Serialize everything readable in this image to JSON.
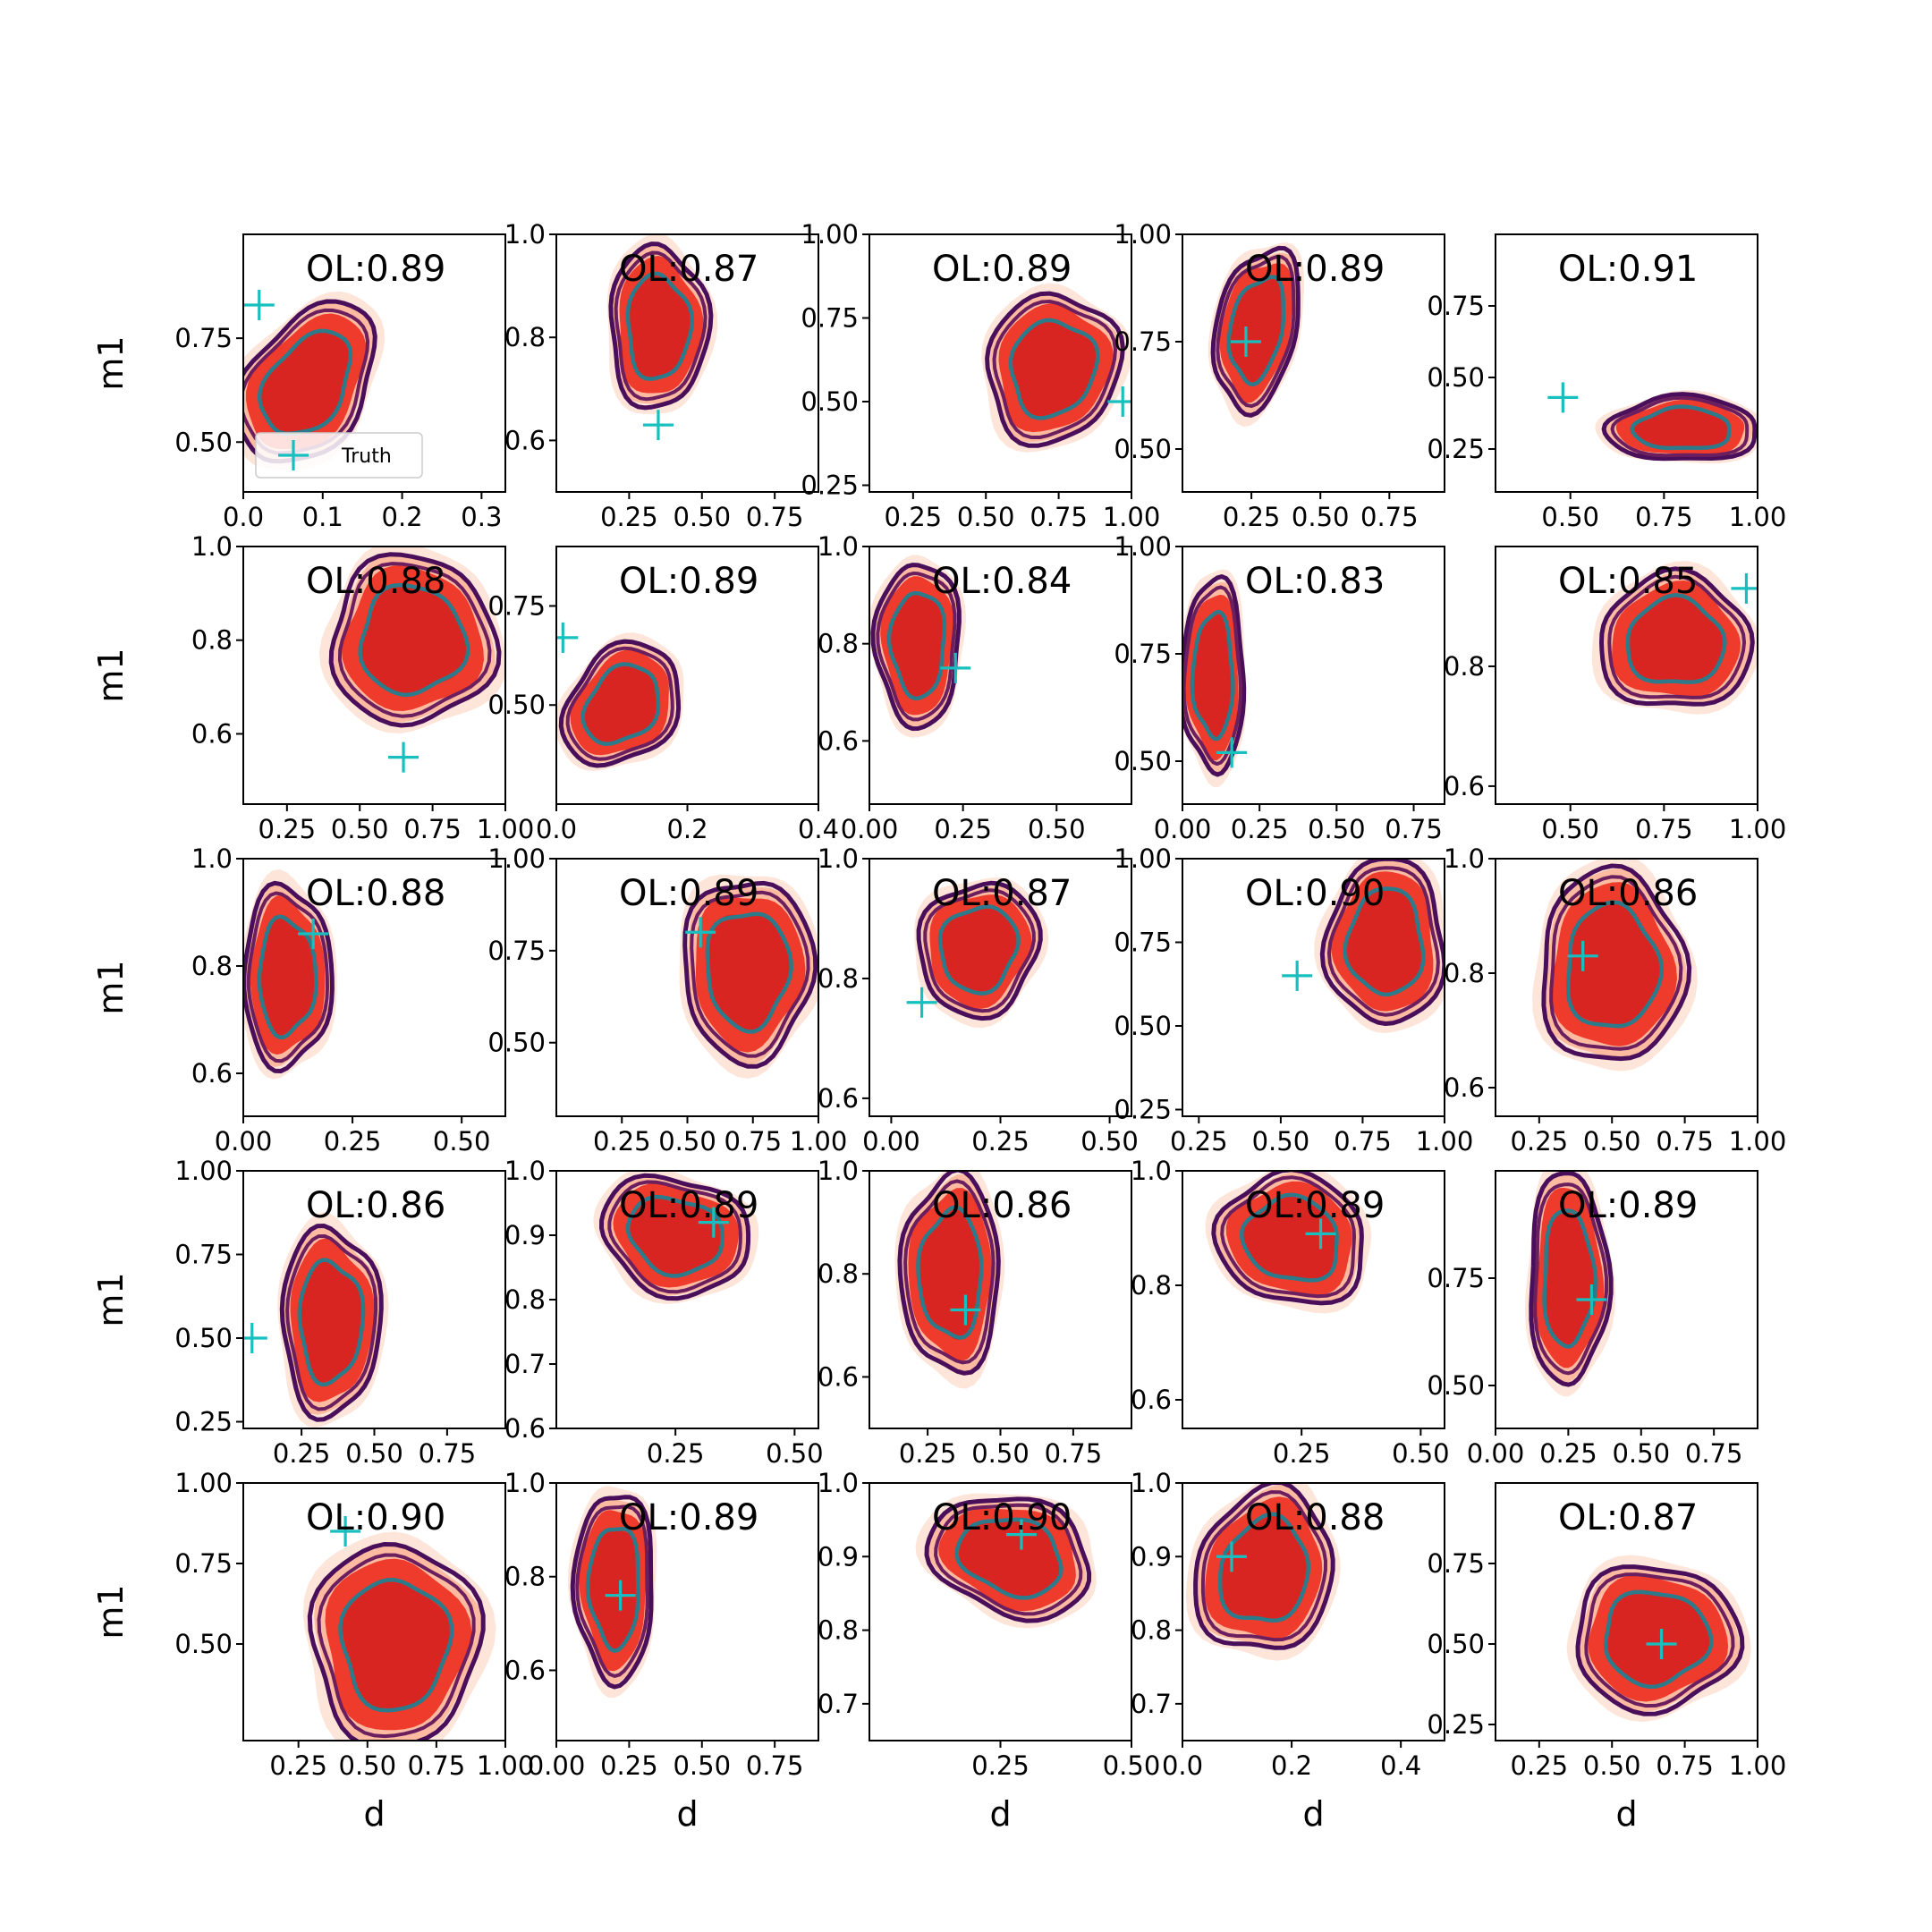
{
  "chart_data": {
    "type": "contour-grid",
    "xlabel": "d",
    "ylabel": "m1",
    "legend": {
      "label": "Truth",
      "marker": "+",
      "placement": "lower-left of first panel"
    },
    "colors": {
      "fill_levels": [
        "#fee5d9",
        "#fcbba1",
        "#ef3b2c"
      ],
      "fill_core": "#d92521",
      "contour_outer": "#4a0f5a",
      "contour_mid": "#6b1f5e",
      "contour_inner": "#2d7a8a",
      "truth": "#17bfbf"
    },
    "panels": [
      {
        "ol": "OL:0.89",
        "xlim": [
          0.0,
          0.33
        ],
        "ylim": [
          0.38,
          1.0
        ],
        "xticks": [
          "0.0",
          "0.1",
          "0.2",
          "0.3"
        ],
        "xtickv": [
          0,
          0.1,
          0.2,
          0.3
        ],
        "yticks": [
          "0.50",
          "0.75"
        ],
        "ytickv": [
          0.5,
          0.75
        ],
        "truth": [
          0.02,
          0.83
        ],
        "c": [
          0.08,
          0.64
        ],
        "r": [
          0.065,
          0.19
        ],
        "rot": 0.6
      },
      {
        "ol": "OL:0.87",
        "xlim": [
          0.0,
          0.9
        ],
        "ylim": [
          0.5,
          1.0
        ],
        "xticks": [
          "0.25",
          "0.50",
          "0.75"
        ],
        "xtickv": [
          0.25,
          0.5,
          0.75
        ],
        "yticks": [
          "0.6",
          "0.8",
          "1.0"
        ],
        "ytickv": [
          0.6,
          0.8,
          1.0
        ],
        "truth": [
          0.35,
          0.63
        ],
        "c": [
          0.35,
          0.82
        ],
        "r": [
          0.15,
          0.14
        ],
        "rot": 0
      },
      {
        "ol": "OL:0.89",
        "xlim": [
          0.1,
          1.0
        ],
        "ylim": [
          0.23,
          1.0
        ],
        "xticks": [
          "0.25",
          "0.50",
          "0.75",
          "1.00"
        ],
        "xtickv": [
          0.25,
          0.5,
          0.75,
          1.0
        ],
        "yticks": [
          "0.25",
          "0.50",
          "0.75",
          "1.00"
        ],
        "ytickv": [
          0.25,
          0.5,
          0.75,
          1.0
        ],
        "truth": [
          0.97,
          0.5
        ],
        "c": [
          0.73,
          0.6
        ],
        "r": [
          0.2,
          0.2
        ],
        "rot": 0.3
      },
      {
        "ol": "OL:0.89",
        "xlim": [
          0.0,
          0.95
        ],
        "ylim": [
          0.4,
          1.0
        ],
        "xticks": [
          "0.25",
          "0.50",
          "0.75"
        ],
        "xtickv": [
          0.25,
          0.5,
          0.75
        ],
        "yticks": [
          "0.50",
          "0.75",
          "1.00"
        ],
        "ytickv": [
          0.5,
          0.75,
          1.0
        ],
        "truth": [
          0.23,
          0.75
        ],
        "c": [
          0.27,
          0.78
        ],
        "r": [
          0.13,
          0.17
        ],
        "rot": 0.2
      },
      {
        "ol": "OL:0.91",
        "xlim": [
          0.3,
          1.0
        ],
        "ylim": [
          0.1,
          1.0
        ],
        "xticks": [
          "0.50",
          "0.75",
          "1.00"
        ],
        "xtickv": [
          0.5,
          0.75,
          1.0
        ],
        "yticks": [
          "0.25",
          "0.50",
          "0.75"
        ],
        "ytickv": [
          0.25,
          0.5,
          0.75
        ],
        "truth": [
          0.48,
          0.43
        ],
        "c": [
          0.8,
          0.32
        ],
        "r": [
          0.18,
          0.1
        ],
        "rot": 0
      },
      {
        "ol": "OL:0.88",
        "xlim": [
          0.1,
          1.0
        ],
        "ylim": [
          0.45,
          1.0
        ],
        "xticks": [
          "0.25",
          "0.50",
          "0.75",
          "1.00"
        ],
        "xtickv": [
          0.25,
          0.5,
          0.75,
          1.0
        ],
        "yticks": [
          "0.6",
          "0.8",
          "1.0"
        ],
        "ytickv": [
          0.6,
          0.8,
          1.0
        ],
        "truth": [
          0.65,
          0.55
        ],
        "c": [
          0.68,
          0.8
        ],
        "r": [
          0.25,
          0.16
        ],
        "rot": 0
      },
      {
        "ol": "OL:0.89",
        "xlim": [
          0.0,
          0.4
        ],
        "ylim": [
          0.25,
          0.9
        ],
        "xticks": [
          "0.0",
          "0.2",
          "0.4"
        ],
        "xtickv": [
          0,
          0.2,
          0.4
        ],
        "yticks": [
          "0.50",
          "0.75"
        ],
        "ytickv": [
          0.5,
          0.75
        ],
        "truth": [
          0.01,
          0.67
        ],
        "c": [
          0.1,
          0.5
        ],
        "r": [
          0.07,
          0.15
        ],
        "rot": 0.7
      },
      {
        "ol": "OL:0.84",
        "xlim": [
          0.0,
          0.7
        ],
        "ylim": [
          0.47,
          1.0
        ],
        "xticks": [
          "0.00",
          "0.25",
          "0.50"
        ],
        "xtickv": [
          0,
          0.25,
          0.5
        ],
        "yticks": [
          "0.6",
          "0.8",
          "1.0"
        ],
        "ytickv": [
          0.6,
          0.8,
          1.0
        ],
        "truth": [
          0.23,
          0.75
        ],
        "c": [
          0.13,
          0.8
        ],
        "r": [
          0.1,
          0.15
        ],
        "rot": 0
      },
      {
        "ol": "OL:0.83",
        "xlim": [
          0.0,
          0.85
        ],
        "ylim": [
          0.4,
          1.0
        ],
        "xticks": [
          "0.00",
          "0.25",
          "0.50",
          "0.75"
        ],
        "xtickv": [
          0,
          0.25,
          0.5,
          0.75
        ],
        "yticks": [
          "0.50",
          "0.75",
          "1.00"
        ],
        "ytickv": [
          0.5,
          0.75,
          1.0
        ],
        "truth": [
          0.16,
          0.52
        ],
        "c": [
          0.1,
          0.7
        ],
        "r": [
          0.09,
          0.2
        ],
        "rot": 0
      },
      {
        "ol": "OL:0.85",
        "xlim": [
          0.3,
          1.0
        ],
        "ylim": [
          0.57,
          1.0
        ],
        "xticks": [
          "0.50",
          "0.75",
          "1.00"
        ],
        "xtickv": [
          0.5,
          0.75,
          1.0
        ],
        "yticks": [
          "0.6",
          "0.8"
        ],
        "ytickv": [
          0.6,
          0.8
        ],
        "truth": [
          0.97,
          0.93
        ],
        "c": [
          0.78,
          0.84
        ],
        "r": [
          0.18,
          0.1
        ],
        "rot": 0
      },
      {
        "ol": "OL:0.88",
        "xlim": [
          0.0,
          0.6
        ],
        "ylim": [
          0.52,
          1.0
        ],
        "xticks": [
          "0.00",
          "0.25",
          "0.50"
        ],
        "xtickv": [
          0,
          0.25,
          0.5
        ],
        "yticks": [
          "0.6",
          "0.8",
          "1.0"
        ],
        "ytickv": [
          0.6,
          0.8,
          1.0
        ],
        "truth": [
          0.16,
          0.86
        ],
        "c": [
          0.1,
          0.78
        ],
        "r": [
          0.09,
          0.15
        ],
        "rot": 0
      },
      {
        "ol": "OL:0.89",
        "xlim": [
          0.0,
          1.0
        ],
        "ylim": [
          0.3,
          1.0
        ],
        "xticks": [
          "0.25",
          "0.50",
          "0.75",
          "1.00"
        ],
        "xtickv": [
          0.25,
          0.5,
          0.75,
          1.0
        ],
        "yticks": [
          "0.50",
          "0.75",
          "1.00"
        ],
        "ytickv": [
          0.5,
          0.75,
          1.0
        ],
        "truth": [
          0.55,
          0.8
        ],
        "c": [
          0.73,
          0.7
        ],
        "r": [
          0.22,
          0.22
        ],
        "rot": 0
      },
      {
        "ol": "OL:0.87",
        "xlim": [
          -0.05,
          0.55
        ],
        "ylim": [
          0.57,
          1.0
        ],
        "xticks": [
          "0.00",
          "0.25",
          "0.50"
        ],
        "xtickv": [
          0,
          0.25,
          0.5
        ],
        "yticks": [
          "0.6",
          "0.8",
          "1.0"
        ],
        "ytickv": [
          0.6,
          0.8,
          1.0
        ],
        "truth": [
          0.07,
          0.76
        ],
        "c": [
          0.2,
          0.85
        ],
        "r": [
          0.12,
          0.1
        ],
        "rot": 0.3
      },
      {
        "ol": "OL:0.90",
        "xlim": [
          0.2,
          1.0
        ],
        "ylim": [
          0.23,
          1.0
        ],
        "xticks": [
          "0.25",
          "0.50",
          "0.75",
          "1.00"
        ],
        "xtickv": [
          0.25,
          0.5,
          0.75,
          1.0
        ],
        "yticks": [
          "0.25",
          "0.50",
          "0.75",
          "1.00"
        ],
        "ytickv": [
          0.25,
          0.5,
          0.75,
          1.0
        ],
        "truth": [
          0.55,
          0.65
        ],
        "c": [
          0.82,
          0.75
        ],
        "r": [
          0.16,
          0.22
        ],
        "rot": 0
      },
      {
        "ol": "OL:0.86",
        "xlim": [
          0.1,
          1.0
        ],
        "ylim": [
          0.55,
          1.0
        ],
        "xticks": [
          "0.25",
          "0.50",
          "0.75",
          "1.00"
        ],
        "xtickv": [
          0.25,
          0.5,
          0.75,
          1.0
        ],
        "yticks": [
          "0.6",
          "0.8",
          "1.0"
        ],
        "ytickv": [
          0.6,
          0.8,
          1.0
        ],
        "truth": [
          0.4,
          0.83
        ],
        "c": [
          0.5,
          0.81
        ],
        "r": [
          0.22,
          0.15
        ],
        "rot": 0
      },
      {
        "ol": "OL:0.86",
        "xlim": [
          0.05,
          0.95
        ],
        "ylim": [
          0.23,
          1.0
        ],
        "xticks": [
          "0.25",
          "0.50",
          "0.75"
        ],
        "xtickv": [
          0.25,
          0.5,
          0.75
        ],
        "yticks": [
          "0.25",
          "0.50",
          "0.75",
          "1.00"
        ],
        "ytickv": [
          0.25,
          0.5,
          0.75,
          1.0
        ],
        "truth": [
          0.08,
          0.5
        ],
        "c": [
          0.35,
          0.55
        ],
        "r": [
          0.15,
          0.25
        ],
        "rot": 0
      },
      {
        "ol": "OL:0.89",
        "xlim": [
          0.0,
          0.55
        ],
        "ylim": [
          0.6,
          1.0
        ],
        "xticks": [
          "0.25",
          "0.50"
        ],
        "xtickv": [
          0.25,
          0.5
        ],
        "yticks": [
          "0.6",
          "0.7",
          "0.8",
          "0.9",
          "1.0"
        ],
        "ytickv": [
          0.6,
          0.7,
          0.8,
          0.9,
          1.0
        ],
        "truth": [
          0.33,
          0.92
        ],
        "c": [
          0.25,
          0.9
        ],
        "r": [
          0.14,
          0.08
        ],
        "rot": 0.3
      },
      {
        "ol": "OL:0.86",
        "xlim": [
          0.05,
          0.95
        ],
        "ylim": [
          0.5,
          1.0
        ],
        "xticks": [
          "0.25",
          "0.50",
          "0.75"
        ],
        "xtickv": [
          0.25,
          0.5,
          0.75
        ],
        "yticks": [
          "0.6",
          "0.8",
          "1.0"
        ],
        "ytickv": [
          0.6,
          0.8,
          1.0
        ],
        "truth": [
          0.38,
          0.73
        ],
        "c": [
          0.33,
          0.8
        ],
        "r": [
          0.15,
          0.17
        ],
        "rot": 0
      },
      {
        "ol": "OL:0.89",
        "xlim": [
          0.0,
          0.55
        ],
        "ylim": [
          0.55,
          1.0
        ],
        "xticks": [
          "0.25",
          "0.50"
        ],
        "xtickv": [
          0.25,
          0.5
        ],
        "yticks": [
          "0.6",
          "0.8",
          "1.0"
        ],
        "ytickv": [
          0.6,
          0.8,
          1.0
        ],
        "truth": [
          0.29,
          0.89
        ],
        "c": [
          0.23,
          0.88
        ],
        "r": [
          0.14,
          0.1
        ],
        "rot": 0.3
      },
      {
        "ol": "OL:0.89",
        "xlim": [
          0.0,
          0.9
        ],
        "ylim": [
          0.4,
          1.0
        ],
        "xticks": [
          "0.00",
          "0.25",
          "0.50",
          "0.75"
        ],
        "xtickv": [
          0,
          0.25,
          0.5,
          0.75
        ],
        "yticks": [
          "0.50",
          "0.75"
        ],
        "ytickv": [
          0.5,
          0.75
        ],
        "truth": [
          0.33,
          0.7
        ],
        "c": [
          0.25,
          0.75
        ],
        "r": [
          0.12,
          0.22
        ],
        "rot": 0
      },
      {
        "ol": "OL:0.90",
        "xlim": [
          0.05,
          1.0
        ],
        "ylim": [
          0.2,
          1.0
        ],
        "xticks": [
          "0.25",
          "0.50",
          "0.75",
          "1.00"
        ],
        "xtickv": [
          0.25,
          0.5,
          0.75,
          1.0
        ],
        "yticks": [
          "0.50",
          "0.75",
          "1.00"
        ],
        "ytickv": [
          0.5,
          0.75,
          1.0
        ],
        "truth": [
          0.42,
          0.85
        ],
        "c": [
          0.6,
          0.5
        ],
        "r": [
          0.27,
          0.28
        ],
        "rot": 0
      },
      {
        "ol": "OL:0.89",
        "xlim": [
          0.0,
          0.9
        ],
        "ylim": [
          0.45,
          1.0
        ],
        "xticks": [
          "0.00",
          "0.25",
          "0.50",
          "0.75"
        ],
        "xtickv": [
          0,
          0.25,
          0.5,
          0.75
        ],
        "yticks": [
          "0.6",
          "0.8",
          "1.0"
        ],
        "ytickv": [
          0.6,
          0.8,
          1.0
        ],
        "truth": [
          0.22,
          0.76
        ],
        "c": [
          0.2,
          0.78
        ],
        "r": [
          0.12,
          0.18
        ],
        "rot": 0
      },
      {
        "ol": "OL:0.90",
        "xlim": [
          0.0,
          0.5
        ],
        "ylim": [
          0.65,
          1.0
        ],
        "xticks": [
          "0.25",
          "0.50"
        ],
        "xtickv": [
          0.25,
          0.5
        ],
        "yticks": [
          "0.7",
          "0.8",
          "0.9",
          "1.0"
        ],
        "ytickv": [
          0.7,
          0.8,
          0.9,
          1.0
        ],
        "truth": [
          0.29,
          0.93
        ],
        "c": [
          0.27,
          0.9
        ],
        "r": [
          0.14,
          0.07
        ],
        "rot": 0.3
      },
      {
        "ol": "OL:0.88",
        "xlim": [
          0.0,
          0.48
        ],
        "ylim": [
          0.65,
          1.0
        ],
        "xticks": [
          "0.0",
          "0.2",
          "0.4"
        ],
        "xtickv": [
          0,
          0.2,
          0.4
        ],
        "yticks": [
          "0.7",
          "0.8",
          "0.9",
          "1.0"
        ],
        "ytickv": [
          0.7,
          0.8,
          0.9,
          1.0
        ],
        "truth": [
          0.09,
          0.9
        ],
        "c": [
          0.15,
          0.88
        ],
        "r": [
          0.11,
          0.1
        ],
        "rot": 0.3
      },
      {
        "ol": "OL:0.87",
        "xlim": [
          0.1,
          1.0
        ],
        "ylim": [
          0.2,
          1.0
        ],
        "xticks": [
          "0.25",
          "0.50",
          "0.75",
          "1.00"
        ],
        "xtickv": [
          0.25,
          0.5,
          0.75,
          1.0
        ],
        "yticks": [
          "0.25",
          "0.50",
          "0.75"
        ],
        "ytickv": [
          0.25,
          0.5,
          0.75
        ],
        "truth": [
          0.67,
          0.5
        ],
        "c": [
          0.65,
          0.52
        ],
        "r": [
          0.25,
          0.2
        ],
        "rot": 0
      }
    ]
  }
}
